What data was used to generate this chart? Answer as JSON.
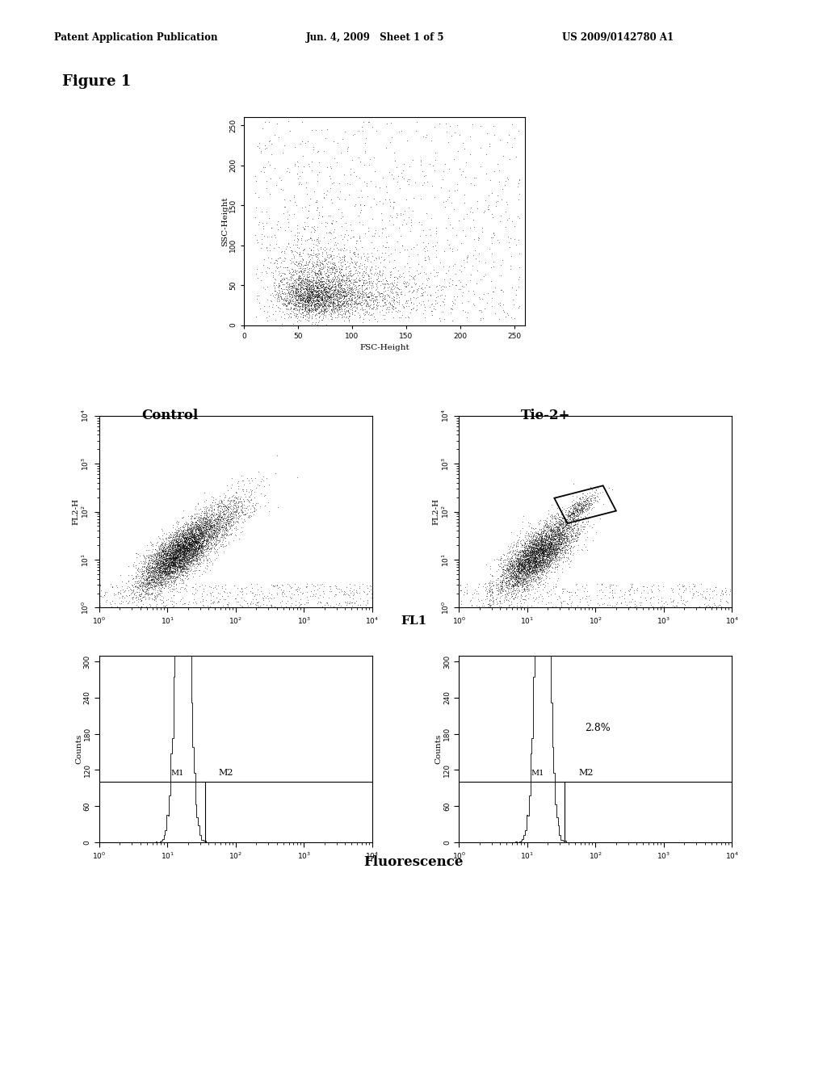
{
  "title": "Figure 1",
  "header_left": "Patent Application Publication",
  "header_mid": "Jun. 4, 2009   Sheet 1 of 5",
  "header_right": "US 2009/0142780 A1",
  "scatter1_xlabel": "FSC-Height",
  "scatter1_ylabel": "SSC-Height",
  "scatter1_xlim": [
    0,
    260
  ],
  "scatter1_ylim": [
    0,
    260
  ],
  "scatter1_xticks": [
    0,
    50,
    100,
    150,
    200,
    250
  ],
  "scatter1_yticks": [
    0,
    50,
    100,
    150,
    200,
    250
  ],
  "scatter2_xlabel": "FL1",
  "scatter2_ylabel": "FL2-H",
  "label_control": "Control",
  "label_tie2": "Tie-2+",
  "hist_xlabel": "Fluorescence",
  "hist_ylabel": "Counts",
  "hist_yticks": [
    0,
    60,
    120,
    180,
    240,
    300
  ],
  "annotation_pct": "2.8%",
  "bg_color": "#ffffff",
  "plot_color": "#000000"
}
